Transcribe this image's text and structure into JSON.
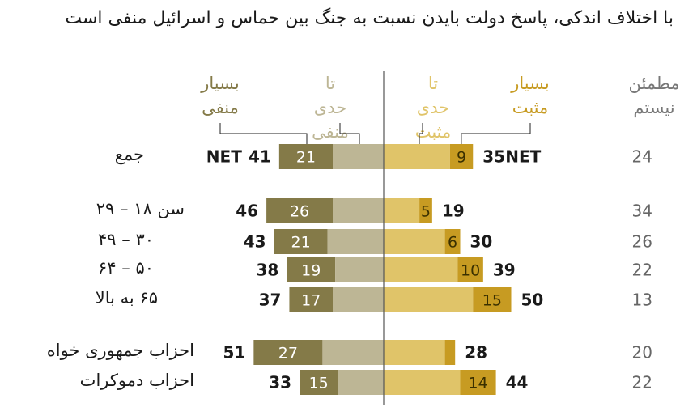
{
  "title": "با اختلاف اندکی، پاسخ دولت بایدن نسبت به جنگ بین حماس و اسرائیل منفی است",
  "colors": {
    "very_negative": "#847a48",
    "somewhat_negative": "#bdb695",
    "somewhat_positive": "#e0c469",
    "very_positive": "#c79b22",
    "unsure": "#666666",
    "divider": "#555555"
  },
  "chart_data": {
    "type": "bar",
    "layout": "diverging-stacked",
    "legend": {
      "very_negative": "بسیار منفی",
      "somewhat_negative": "تا حدی منفی",
      "somewhat_positive": "تا حدی مثبت",
      "very_positive": "بسیار مثبت",
      "unsure": "مطمئن نیستم"
    },
    "net_label": "NET",
    "categories": [
      "جمع",
      "سن ۱۸ – ۲۹",
      "۳۰ – ۴۹",
      "۵۰ – ۶۴",
      "۶۵ به بالا",
      "احزاب جمهوری خواه",
      "احزاب دموکرات"
    ],
    "groups": [
      [
        0
      ],
      [
        1,
        2,
        3,
        4
      ],
      [
        5,
        6
      ]
    ],
    "net_negative": [
      41,
      46,
      43,
      38,
      37,
      51,
      33
    ],
    "very_negative": [
      21,
      26,
      21,
      19,
      17,
      27,
      15
    ],
    "net_positive": [
      35,
      19,
      30,
      39,
      50,
      28,
      44
    ],
    "very_positive": [
      9,
      5,
      6,
      10,
      15,
      4,
      14
    ],
    "very_positive_labels": [
      "9",
      "5",
      "6",
      "10",
      "15",
      "",
      "14"
    ],
    "unsure": [
      24,
      34,
      26,
      22,
      13,
      20,
      22
    ]
  }
}
